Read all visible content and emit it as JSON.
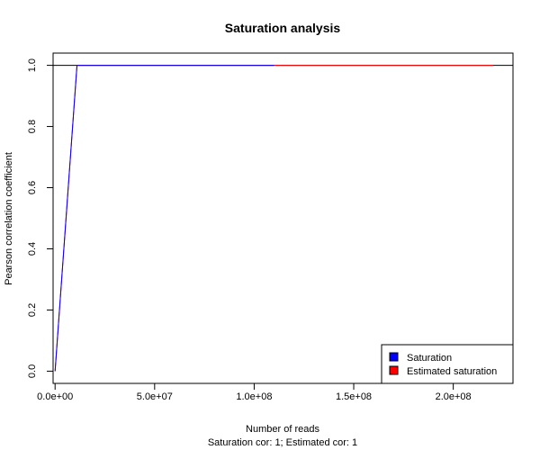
{
  "chart_data": {
    "type": "line",
    "title": "Saturation analysis",
    "xlabel": "Number of reads",
    "ylabel": "Pearson correlation coefficient",
    "subtitle": "Saturation cor: 1; Estimated cor: 1",
    "xlim": [
      -1000000,
      230000000
    ],
    "ylim": [
      -0.04,
      1.04
    ],
    "x_ticks": [
      0,
      50000000,
      100000000,
      150000000,
      200000000
    ],
    "x_tick_labels": [
      "0.0e+00",
      "5.0e+07",
      "1.0e+08",
      "1.5e+08",
      "2.0e+08"
    ],
    "y_ticks": [
      0,
      0.2,
      0.4,
      0.6,
      0.8,
      1.0
    ],
    "y_tick_labels": [
      "0.0",
      "0.2",
      "0.4",
      "0.6",
      "0.8",
      "1.0"
    ],
    "reference_line": 1.0,
    "series": [
      {
        "name": "Saturation",
        "color": "#0000ff",
        "x": [
          0,
          11000000,
          22000000,
          33000000,
          44000000,
          55000000,
          66000000,
          77000000,
          88000000,
          99000000,
          110000000
        ],
        "y": [
          0,
          1,
          1,
          1,
          1,
          1,
          1,
          1,
          1,
          1,
          1
        ]
      },
      {
        "name": "Estimated saturation",
        "color": "#ff0000",
        "x": [
          0,
          11000000,
          22000000,
          33000000,
          44000000,
          55000000,
          66000000,
          77000000,
          88000000,
          99000000,
          110000000,
          121000000,
          132000000,
          143000000,
          154000000,
          165000000,
          176000000,
          187000000,
          198000000,
          209000000,
          220000000
        ],
        "y": [
          0,
          1,
          1,
          1,
          1,
          1,
          1,
          1,
          1,
          1,
          1,
          1,
          1,
          1,
          1,
          1,
          1,
          1,
          1,
          1,
          1
        ]
      }
    ],
    "legend_position": "bottom-right"
  }
}
